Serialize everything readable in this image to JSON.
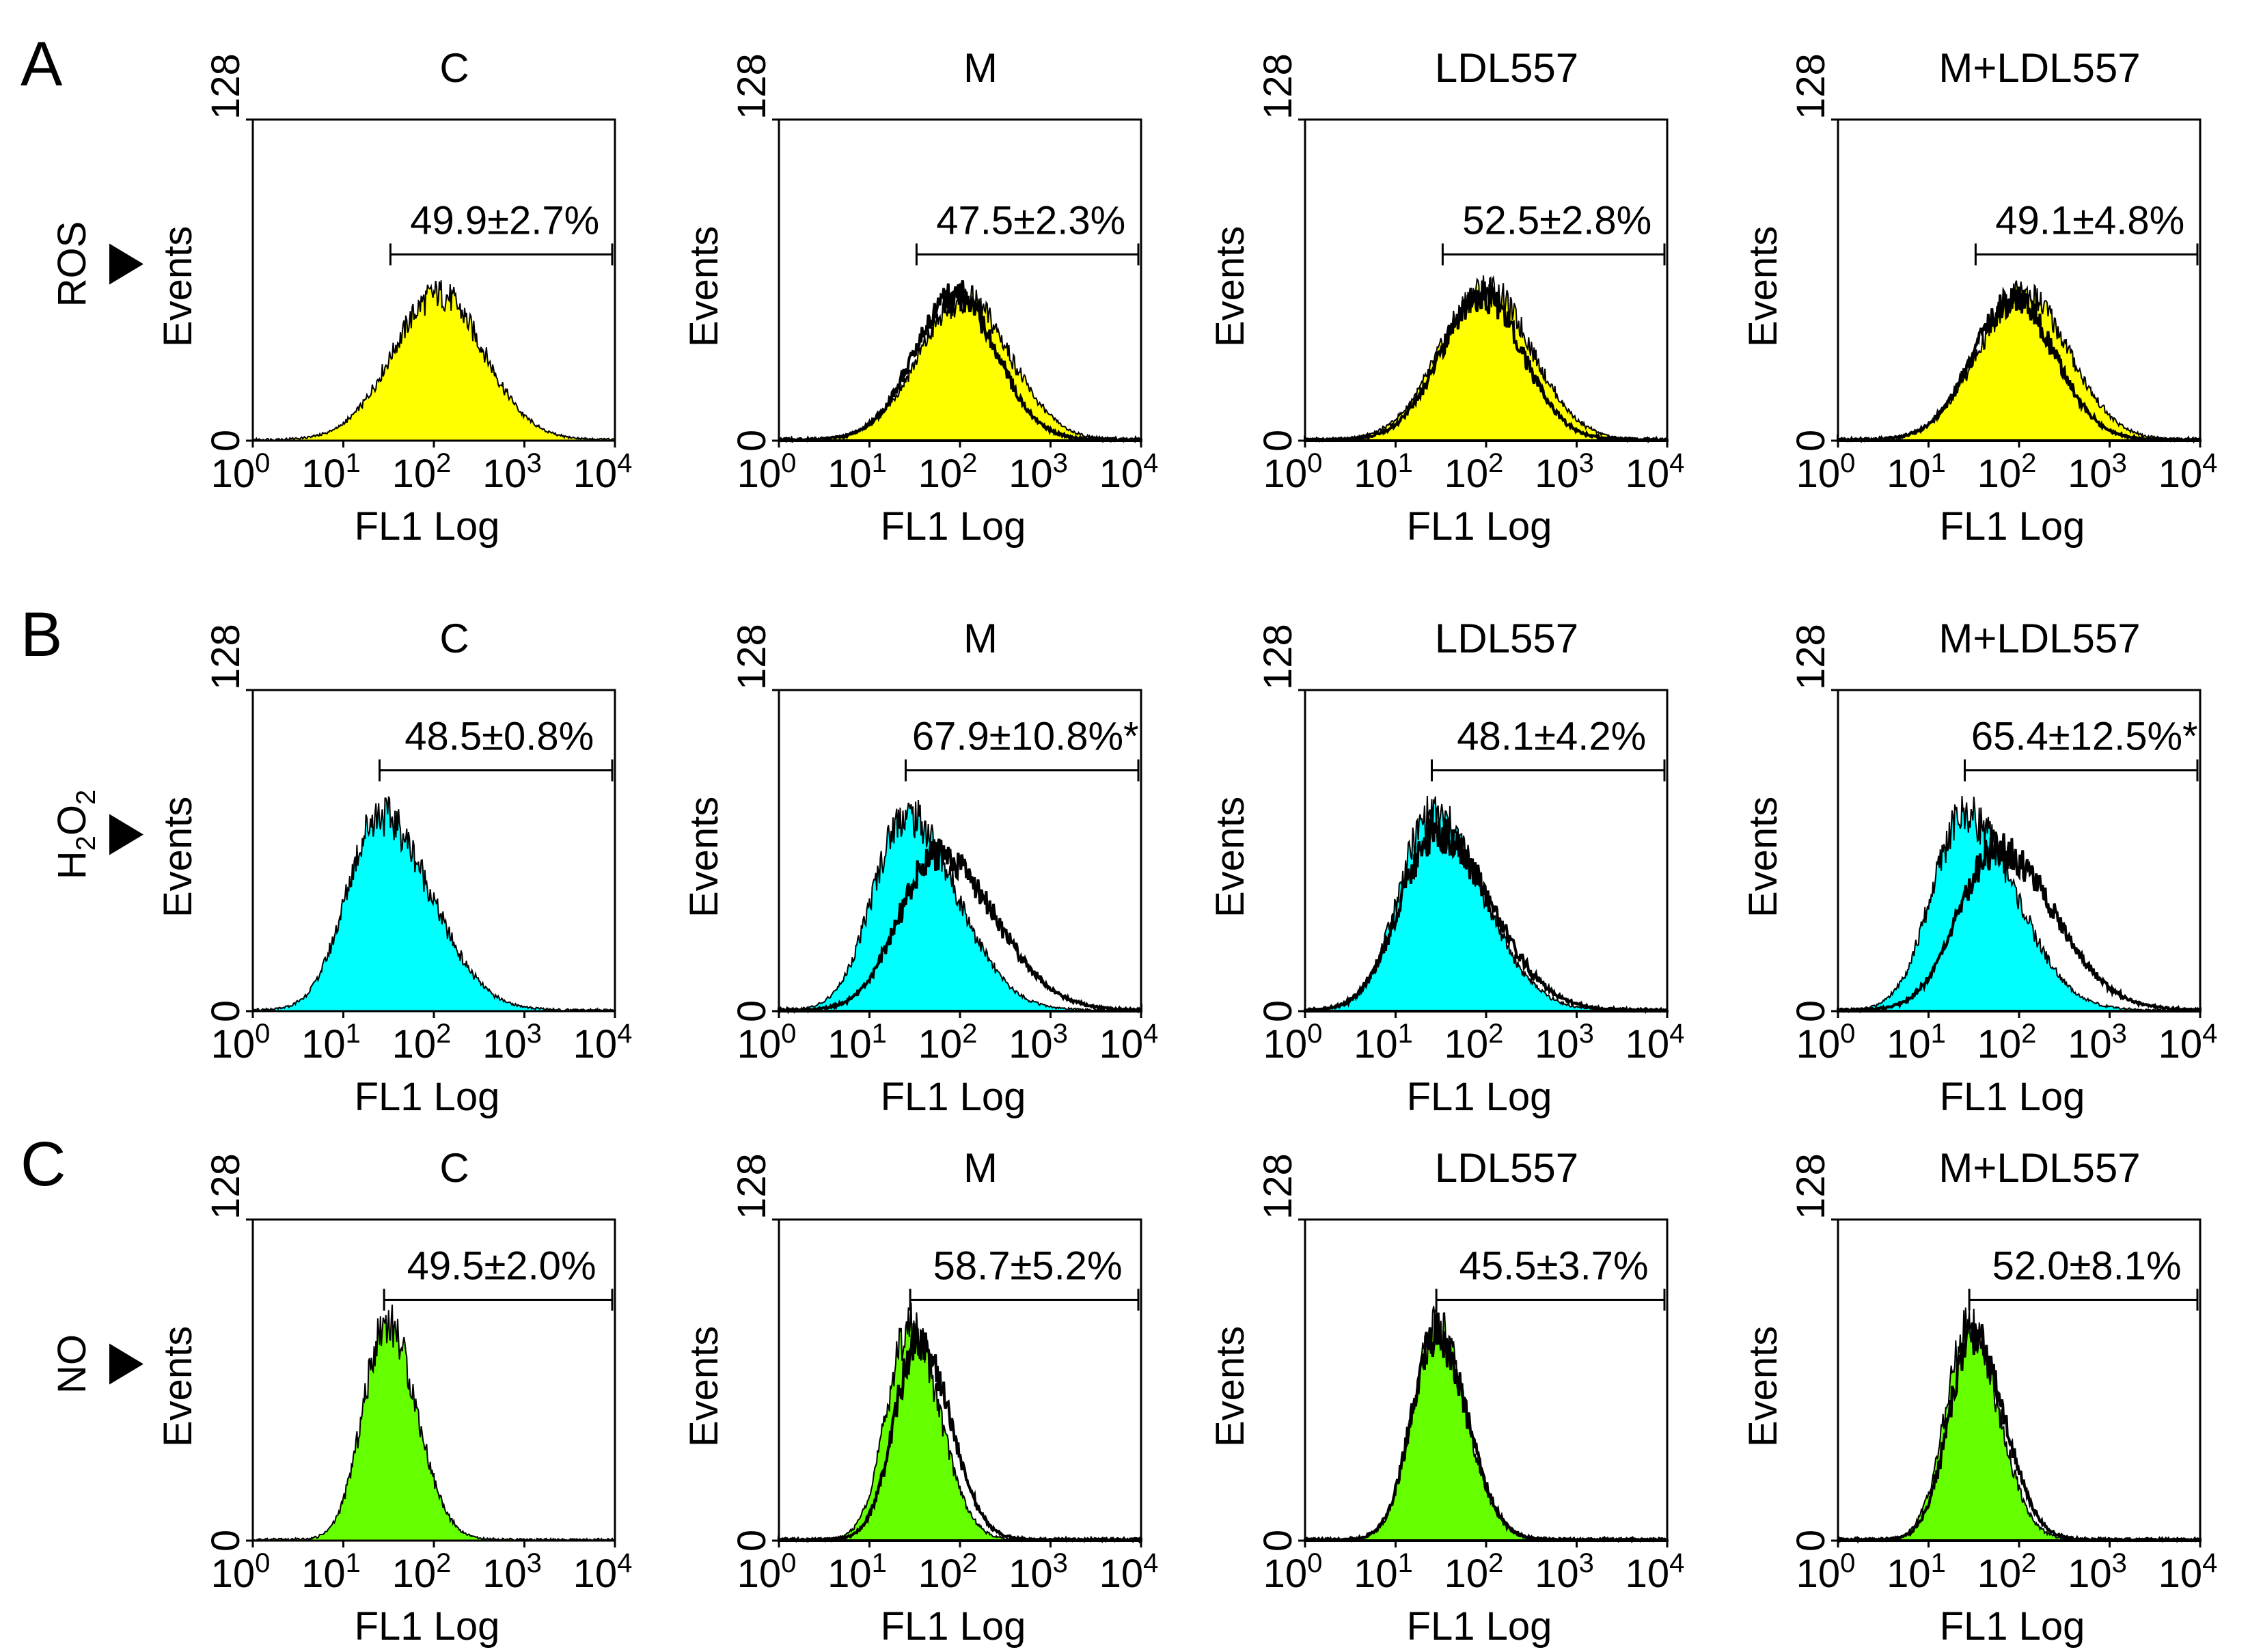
{
  "figure": {
    "rows": [
      {
        "letter": "A",
        "marker": "ROS",
        "fill": "#ffff00"
      },
      {
        "letter": "B",
        "marker": "H2O2",
        "marker_main": "H",
        "marker_sub1": "2",
        "marker_mid": "O",
        "marker_sub2": "2",
        "fill": "#00ffff"
      },
      {
        "letter": "C",
        "marker": "NO",
        "fill": "#66ff00"
      }
    ],
    "columns": [
      "C",
      "M",
      "LDL557",
      "M+LDL557"
    ],
    "ylabel": "Events",
    "xlabel": "FL1 Log"
  },
  "chart_data": [
    {
      "type": "histogram",
      "row": "A",
      "title": "C",
      "marker": "ROS",
      "annotation": "49.9±2.7%",
      "significant": false,
      "xlabel": "FL1 Log",
      "ylabel": "Events",
      "xscale": "log",
      "xlim": [
        1,
        10000
      ],
      "ylim": [
        0,
        128
      ],
      "x_ticks": [
        1,
        10,
        100,
        1000,
        10000
      ],
      "y_ticks": [
        0,
        128
      ],
      "gate_log10": [
        1.52,
        4.0
      ],
      "control_fill": "#ffff00",
      "control": {
        "peak_log10": 2.05,
        "width": 0.5,
        "skew": 0.0,
        "height": 58
      },
      "treated": null
    },
    {
      "type": "histogram",
      "row": "A",
      "title": "M",
      "marker": "ROS",
      "annotation": "47.5±2.3%",
      "significant": false,
      "xlabel": "FL1 Log",
      "ylabel": "Events",
      "xscale": "log",
      "xlim": [
        1,
        10000
      ],
      "ylim": [
        0,
        128
      ],
      "x_ticks": [
        1,
        10,
        100,
        1000,
        10000
      ],
      "y_ticks": [
        0,
        128
      ],
      "gate_log10": [
        1.52,
        4.0
      ],
      "control_fill": "#ffff00",
      "control": {
        "peak_log10": 2.05,
        "width": 0.5,
        "skew": 0.0,
        "height": 56
      },
      "treated": {
        "peak_log10": 1.95,
        "width": 0.45,
        "skew": 0.0,
        "height": 58
      }
    },
    {
      "type": "histogram",
      "row": "A",
      "title": "LDL557",
      "marker": "ROS",
      "annotation": "52.5±2.8%",
      "significant": false,
      "xlabel": "FL1 Log",
      "ylabel": "Events",
      "xscale": "log",
      "xlim": [
        1,
        10000
      ],
      "ylim": [
        0,
        128
      ],
      "x_ticks": [
        1,
        10,
        100,
        1000,
        10000
      ],
      "y_ticks": [
        0,
        128
      ],
      "gate_log10": [
        1.52,
        4.0
      ],
      "control_fill": "#ffff00",
      "control": {
        "peak_log10": 2.0,
        "width": 0.5,
        "skew": 0.0,
        "height": 60
      },
      "treated": {
        "peak_log10": 1.95,
        "width": 0.45,
        "skew": 0.0,
        "height": 57
      }
    },
    {
      "type": "histogram",
      "row": "A",
      "title": "M+LDL557",
      "marker": "ROS",
      "annotation": "49.1±4.8%",
      "significant": false,
      "xlabel": "FL1 Log",
      "ylabel": "Events",
      "xscale": "log",
      "xlim": [
        1,
        10000
      ],
      "ylim": [
        0,
        128
      ],
      "x_ticks": [
        1,
        10,
        100,
        1000,
        10000
      ],
      "y_ticks": [
        0,
        128
      ],
      "gate_log10": [
        1.52,
        4.0
      ],
      "control_fill": "#ffff00",
      "control": {
        "peak_log10": 2.05,
        "width": 0.5,
        "skew": 0.0,
        "height": 58
      },
      "treated": {
        "peak_log10": 1.95,
        "width": 0.45,
        "skew": 0.0,
        "height": 56
      }
    },
    {
      "type": "histogram",
      "row": "B",
      "title": "C",
      "marker": "H2O2",
      "annotation": "48.5±0.8%",
      "significant": false,
      "xlabel": "FL1 Log",
      "ylabel": "Events",
      "xscale": "log",
      "xlim": [
        1,
        10000
      ],
      "ylim": [
        0,
        128
      ],
      "x_ticks": [
        1,
        10,
        100,
        1000,
        10000
      ],
      "y_ticks": [
        0,
        128
      ],
      "gate_log10": [
        1.4,
        4.0
      ],
      "control_fill": "#00ffff",
      "control": {
        "peak_log10": 1.4,
        "width": 0.36,
        "skew": 0.55,
        "height": 78
      },
      "treated": null
    },
    {
      "type": "histogram",
      "row": "B",
      "title": "M",
      "marker": "H2O2",
      "annotation": "67.9±10.8%*",
      "significant": true,
      "xlabel": "FL1 Log",
      "ylabel": "Events",
      "xscale": "log",
      "xlim": [
        1,
        10000
      ],
      "ylim": [
        0,
        128
      ],
      "x_ticks": [
        1,
        10,
        100,
        1000,
        10000
      ],
      "y_ticks": [
        0,
        128
      ],
      "gate_log10": [
        1.4,
        4.0
      ],
      "control_fill": "#00ffff",
      "control": {
        "peak_log10": 1.4,
        "width": 0.36,
        "skew": 0.55,
        "height": 78
      },
      "treated": {
        "peak_log10": 1.75,
        "width": 0.42,
        "skew": 0.5,
        "height": 62
      }
    },
    {
      "type": "histogram",
      "row": "B",
      "title": "LDL557",
      "marker": "H2O2",
      "annotation": "48.1±4.2%",
      "significant": false,
      "xlabel": "FL1 Log",
      "ylabel": "Events",
      "xscale": "log",
      "xlim": [
        1,
        10000
      ],
      "ylim": [
        0,
        128
      ],
      "x_ticks": [
        1,
        10,
        100,
        1000,
        10000
      ],
      "y_ticks": [
        0,
        128
      ],
      "gate_log10": [
        1.4,
        4.0
      ],
      "control_fill": "#00ffff",
      "control": {
        "peak_log10": 1.4,
        "width": 0.36,
        "skew": 0.55,
        "height": 78
      },
      "treated": {
        "peak_log10": 1.45,
        "width": 0.4,
        "skew": 0.5,
        "height": 70
      }
    },
    {
      "type": "histogram",
      "row": "B",
      "title": "M+LDL557",
      "marker": "H2O2",
      "annotation": "65.4±12.5%*",
      "significant": true,
      "xlabel": "FL1 Log",
      "ylabel": "Events",
      "xscale": "log",
      "xlim": [
        1,
        10000
      ],
      "ylim": [
        0,
        128
      ],
      "x_ticks": [
        1,
        10,
        100,
        1000,
        10000
      ],
      "y_ticks": [
        0,
        128
      ],
      "gate_log10": [
        1.4,
        4.0
      ],
      "control_fill": "#00ffff",
      "control": {
        "peak_log10": 1.4,
        "width": 0.36,
        "skew": 0.55,
        "height": 78
      },
      "treated": {
        "peak_log10": 1.75,
        "width": 0.42,
        "skew": 0.5,
        "height": 64
      }
    },
    {
      "type": "histogram",
      "row": "C",
      "title": "C",
      "marker": "NO",
      "annotation": "49.5±2.0%",
      "significant": false,
      "xlabel": "FL1 Log",
      "ylabel": "Events",
      "xscale": "log",
      "xlim": [
        1,
        10000
      ],
      "ylim": [
        0,
        128
      ],
      "x_ticks": [
        1,
        10,
        100,
        1000,
        10000
      ],
      "y_ticks": [
        0,
        128
      ],
      "gate_log10": [
        1.45,
        4.0
      ],
      "control_fill": "#66ff00",
      "control": {
        "peak_log10": 1.48,
        "width": 0.26,
        "skew": 0.25,
        "height": 87
      },
      "treated": null
    },
    {
      "type": "histogram",
      "row": "C",
      "title": "M",
      "marker": "NO",
      "annotation": "58.7±5.2%",
      "significant": false,
      "xlabel": "FL1 Log",
      "ylabel": "Events",
      "xscale": "log",
      "xlim": [
        1,
        10000
      ],
      "ylim": [
        0,
        128
      ],
      "x_ticks": [
        1,
        10,
        100,
        1000,
        10000
      ],
      "y_ticks": [
        0,
        128
      ],
      "gate_log10": [
        1.45,
        4.0
      ],
      "control_fill": "#66ff00",
      "control": {
        "peak_log10": 1.45,
        "width": 0.26,
        "skew": 0.25,
        "height": 85
      },
      "treated": {
        "peak_log10": 1.55,
        "width": 0.27,
        "skew": 0.25,
        "height": 80
      }
    },
    {
      "type": "histogram",
      "row": "C",
      "title": "LDL557",
      "marker": "NO",
      "annotation": "45.5±3.7%",
      "significant": false,
      "xlabel": "FL1 Log",
      "ylabel": "Events",
      "xscale": "log",
      "xlim": [
        1,
        10000
      ],
      "ylim": [
        0,
        128
      ],
      "x_ticks": [
        1,
        10,
        100,
        1000,
        10000
      ],
      "y_ticks": [
        0,
        128
      ],
      "gate_log10": [
        1.45,
        4.0
      ],
      "control_fill": "#66ff00",
      "control": {
        "peak_log10": 1.45,
        "width": 0.26,
        "skew": 0.25,
        "height": 85
      },
      "treated": {
        "peak_log10": 1.45,
        "width": 0.27,
        "skew": 0.25,
        "height": 82
      }
    },
    {
      "type": "histogram",
      "row": "C",
      "title": "M+LDL557",
      "marker": "NO",
      "annotation": "52.0±8.1%",
      "significant": false,
      "xlabel": "FL1 Log",
      "ylabel": "Events",
      "xscale": "log",
      "xlim": [
        1,
        10000
      ],
      "ylim": [
        0,
        128
      ],
      "x_ticks": [
        1,
        10,
        100,
        1000,
        10000
      ],
      "y_ticks": [
        0,
        128
      ],
      "gate_log10": [
        1.45,
        4.0
      ],
      "control_fill": "#66ff00",
      "control": {
        "peak_log10": 1.45,
        "width": 0.26,
        "skew": 0.25,
        "height": 85
      },
      "treated": {
        "peak_log10": 1.5,
        "width": 0.27,
        "skew": 0.25,
        "height": 82
      }
    }
  ]
}
